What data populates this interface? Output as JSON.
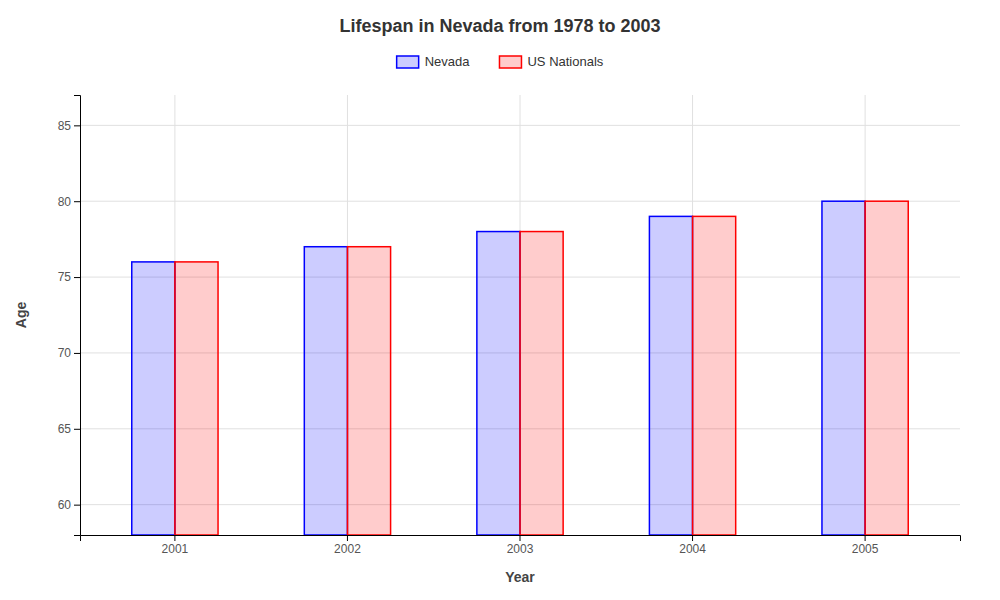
{
  "chart_data": {
    "type": "bar",
    "title": "Lifespan in Nevada from 1978 to 2003",
    "xlabel": "Year",
    "ylabel": "Age",
    "categories": [
      "2001",
      "2002",
      "2003",
      "2004",
      "2005"
    ],
    "series": [
      {
        "name": "Nevada",
        "color": "#0000ff",
        "values": [
          76,
          77,
          78,
          79,
          80
        ]
      },
      {
        "name": "US Nationals",
        "color": "#ff0000",
        "values": [
          76,
          77,
          78,
          79,
          80
        ]
      }
    ],
    "ylim": [
      58,
      87
    ],
    "yticks": [
      60,
      65,
      70,
      75,
      80,
      85
    ],
    "grid": true,
    "legend": "top"
  }
}
